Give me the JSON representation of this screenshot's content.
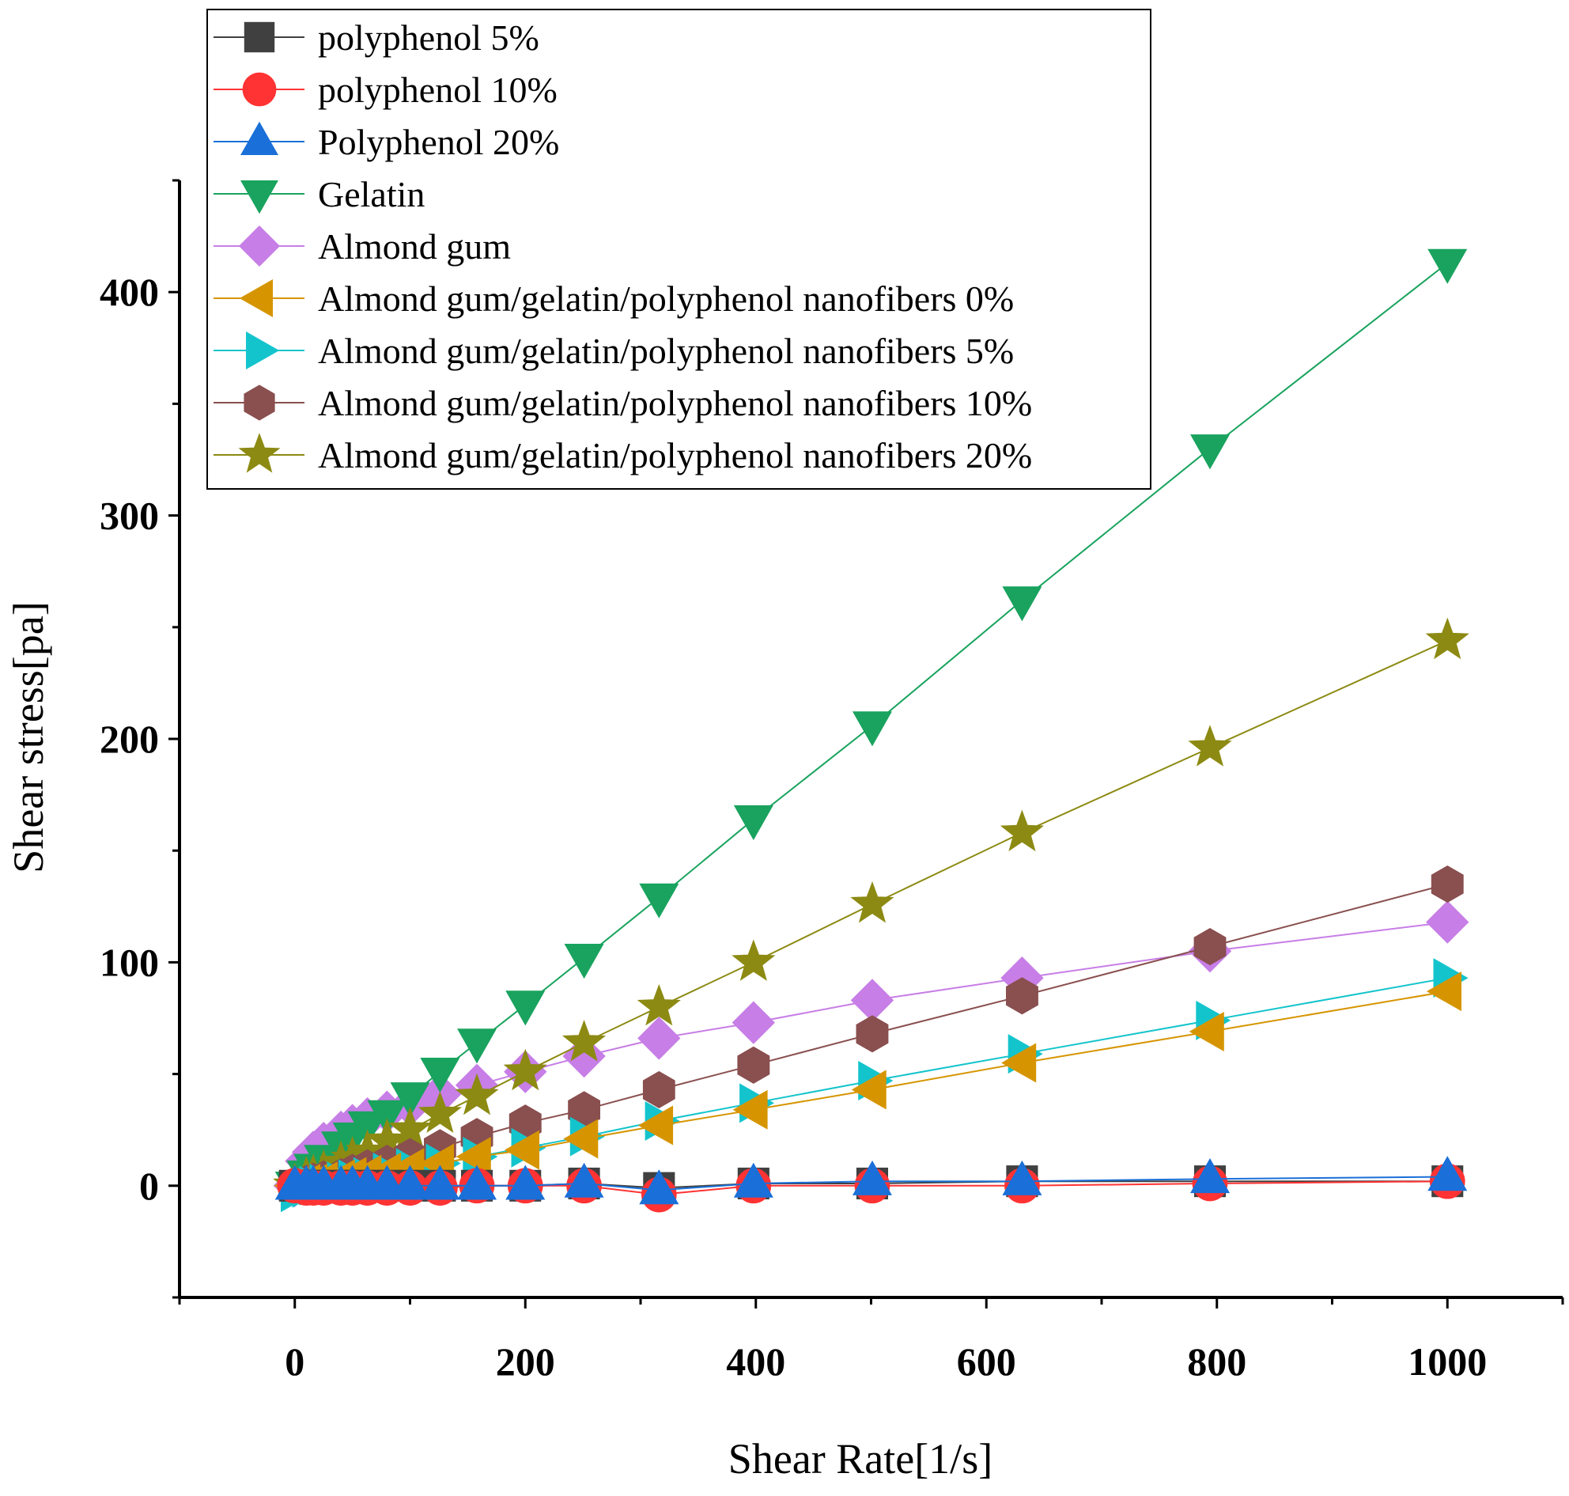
{
  "chart_data": {
    "type": "line",
    "title": "",
    "xlabel": "Shear Rate[1/s]",
    "ylabel": "Shear stress[pa]",
    "xlim": [
      -100,
      1100
    ],
    "ylim": [
      -50,
      450
    ],
    "x_ticks": [
      0,
      200,
      400,
      600,
      800,
      1000
    ],
    "y_ticks": [
      0,
      100,
      200,
      300,
      400
    ],
    "x_tick_labels": [
      "0",
      "200",
      "400",
      "600",
      "800",
      "1000"
    ],
    "y_tick_labels": [
      "0",
      "100",
      "200",
      "300",
      "400"
    ],
    "grid": false,
    "legend_position": "top-left",
    "x": [
      0,
      10,
      16,
      25,
      40,
      50,
      63,
      80,
      100,
      126,
      158,
      200,
      251,
      316,
      398,
      501,
      631,
      794,
      1000
    ],
    "series": [
      {
        "name": "polyphenol 5%",
        "color": "#404040",
        "marker": "square",
        "values": [
          0,
          0,
          0,
          0,
          0,
          0,
          0,
          0,
          0,
          0,
          0,
          0,
          1,
          -1,
          1,
          1,
          2,
          2,
          2
        ]
      },
      {
        "name": "polyphenol 10%",
        "color": "#ff3333",
        "marker": "circle",
        "values": [
          0,
          -1,
          -1,
          -1,
          -1,
          -1,
          -1,
          -1,
          -1,
          -1,
          0,
          0,
          0,
          -4,
          0,
          0,
          0,
          1,
          2
        ]
      },
      {
        "name": "Polyphenol 20%",
        "color": "#1a6fd8",
        "marker": "triangle-up",
        "values": [
          0,
          0,
          0,
          0,
          0,
          0,
          0,
          0,
          0,
          0,
          0,
          0,
          1,
          -2,
          1,
          2,
          2,
          3,
          4
        ]
      },
      {
        "name": "Gelatin",
        "color": "#19a35e",
        "marker": "triangle-down",
        "values": [
          0,
          5,
          8,
          12,
          18,
          22,
          27,
          32,
          40,
          51,
          64,
          81,
          102,
          129,
          164,
          206,
          262,
          330,
          413
        ]
      },
      {
        "name": "Almond gum",
        "color": "#c77ee6",
        "marker": "diamond",
        "values": [
          0,
          11,
          15,
          19,
          24,
          27,
          30,
          33,
          36,
          41,
          45,
          51,
          58,
          66,
          73,
          83,
          93,
          105,
          118
        ]
      },
      {
        "name": "Almond gum/gelatin/polyphenol nanofibers 0%",
        "color": "#d69500",
        "marker": "triangle-left",
        "values": [
          0,
          1,
          1,
          2,
          3,
          4,
          5,
          6,
          8,
          10,
          13,
          16,
          21,
          27,
          34,
          43,
          55,
          69,
          87
        ]
      },
      {
        "name": "Almond gum/gelatin/polyphenol nanofibers 5%",
        "color": "#14c4cc",
        "marker": "triangle-right",
        "values": [
          -3,
          -1,
          0,
          1,
          2,
          3,
          4,
          6,
          8,
          10,
          13,
          17,
          22,
          29,
          37,
          47,
          59,
          74,
          93
        ]
      },
      {
        "name": "Almond gum/gelatin/polyphenol nanofibers 10%",
        "color": "#8a4f4f",
        "marker": "hexagon",
        "values": [
          0,
          1,
          2,
          3,
          4,
          6,
          8,
          10,
          13,
          17,
          22,
          28,
          34,
          43,
          54,
          68,
          85,
          107,
          135
        ]
      },
      {
        "name": "Almond gum/gelatin/polyphenol nanofibers 20%",
        "color": "#8c8a12",
        "marker": "star",
        "values": [
          0,
          3,
          4,
          6,
          10,
          12,
          15,
          20,
          25,
          32,
          40,
          51,
          64,
          80,
          100,
          126,
          158,
          196,
          244
        ]
      }
    ]
  }
}
